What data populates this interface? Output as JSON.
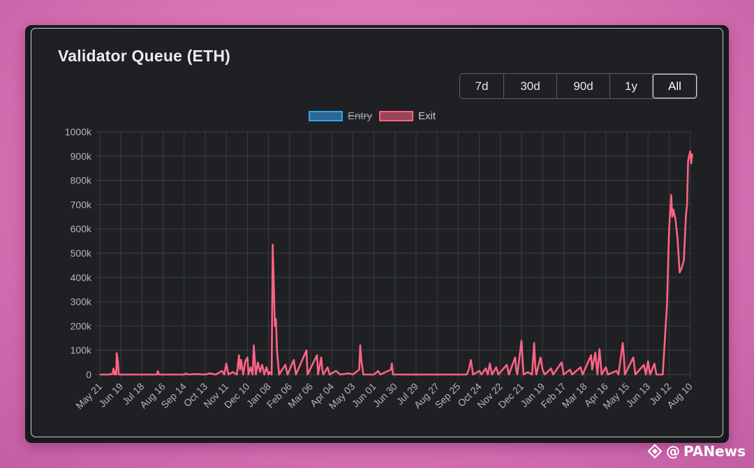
{
  "card": {
    "title": "Validator Queue (ETH)"
  },
  "range_buttons": [
    "7d",
    "30d",
    "90d",
    "1y",
    "All"
  ],
  "active_range": "All",
  "watermark": {
    "at": "@",
    "brand": "PANews"
  },
  "colors": {
    "entry": "#36a2eb",
    "exit": "#ff6384",
    "grid": "#3b3e43",
    "tick": "#b3b6ba"
  },
  "chart_data": {
    "type": "line",
    "title": "",
    "legend": [
      {
        "name": "Entry",
        "color": "#36a2eb",
        "hidden": true
      },
      {
        "name": "Exit",
        "color": "#ff6384",
        "hidden": false
      }
    ],
    "legend_position": "top",
    "grid": true,
    "ylim": [
      0,
      1000000
    ],
    "y_ticks": [
      "0",
      "100k",
      "200k",
      "300k",
      "400k",
      "500k",
      "600k",
      "700k",
      "800k",
      "900k",
      "1000k"
    ],
    "x_tick_labels": [
      "May 21",
      "Jun 19",
      "Jul 18",
      "Aug 16",
      "Sep 14",
      "Oct 13",
      "Nov 11",
      "Dec 10",
      "Jan 08",
      "Feb 06",
      "Mar 06",
      "Apr 04",
      "May 03",
      "Jun 01",
      "Jun 30",
      "Jul 29",
      "Aug 27",
      "Sep 25",
      "Oct 24",
      "Nov 22",
      "Dec 21",
      "Jan 19",
      "Feb 17",
      "Mar 18",
      "Apr 16",
      "May 15",
      "Jun 13",
      "Jul 12",
      "Aug 10"
    ],
    "x_domain": [
      0,
      28.3
    ],
    "series": [
      {
        "name": "Exit",
        "points": [
          [
            0,
            0
          ],
          [
            0.4,
            0
          ],
          [
            0.6,
            2000
          ],
          [
            0.65,
            25000
          ],
          [
            0.7,
            0
          ],
          [
            0.75,
            15000
          ],
          [
            0.78,
            0
          ],
          [
            0.8,
            88000
          ],
          [
            0.85,
            60000
          ],
          [
            0.9,
            0
          ],
          [
            1.2,
            0
          ],
          [
            2.0,
            0
          ],
          [
            2.7,
            0
          ],
          [
            2.75,
            14000
          ],
          [
            2.8,
            0
          ],
          [
            3.5,
            0
          ],
          [
            4.0,
            0
          ],
          [
            4.1,
            4000
          ],
          [
            4.2,
            0
          ],
          [
            4.5,
            2000
          ],
          [
            5.0,
            0
          ],
          [
            5.2,
            5000
          ],
          [
            5.5,
            0
          ],
          [
            5.8,
            15000
          ],
          [
            5.9,
            0
          ],
          [
            6.0,
            45000
          ],
          [
            6.1,
            0
          ],
          [
            6.3,
            10000
          ],
          [
            6.5,
            0
          ],
          [
            6.6,
            80000
          ],
          [
            6.65,
            20000
          ],
          [
            6.7,
            60000
          ],
          [
            6.8,
            0
          ],
          [
            6.9,
            55000
          ],
          [
            7.0,
            70000
          ],
          [
            7.05,
            0
          ],
          [
            7.15,
            30000
          ],
          [
            7.25,
            0
          ],
          [
            7.3,
            120000
          ],
          [
            7.35,
            60000
          ],
          [
            7.4,
            0
          ],
          [
            7.5,
            50000
          ],
          [
            7.6,
            10000
          ],
          [
            7.7,
            40000
          ],
          [
            7.8,
            0
          ],
          [
            7.9,
            30000
          ],
          [
            8.0,
            0
          ],
          [
            8.05,
            10000
          ],
          [
            8.15,
            0
          ],
          [
            8.2,
            535000
          ],
          [
            8.25,
            380000
          ],
          [
            8.3,
            200000
          ],
          [
            8.35,
            230000
          ],
          [
            8.4,
            100000
          ],
          [
            8.5,
            0
          ],
          [
            8.8,
            40000
          ],
          [
            8.9,
            0
          ],
          [
            9.2,
            60000
          ],
          [
            9.3,
            0
          ],
          [
            9.8,
            100000
          ],
          [
            9.85,
            0
          ],
          [
            10.3,
            80000
          ],
          [
            10.35,
            0
          ],
          [
            10.5,
            70000
          ],
          [
            10.55,
            20000
          ],
          [
            10.6,
            0
          ],
          [
            10.8,
            30000
          ],
          [
            10.9,
            0
          ],
          [
            11.2,
            15000
          ],
          [
            11.4,
            0
          ],
          [
            11.8,
            5000
          ],
          [
            12.0,
            0
          ],
          [
            12.3,
            20000
          ],
          [
            12.35,
            120000
          ],
          [
            12.4,
            60000
          ],
          [
            12.5,
            0
          ],
          [
            13.0,
            0
          ],
          [
            13.2,
            15000
          ],
          [
            13.3,
            0
          ],
          [
            13.8,
            20000
          ],
          [
            13.85,
            45000
          ],
          [
            13.9,
            0
          ],
          [
            14.5,
            0
          ],
          [
            14.8,
            0
          ],
          [
            15.6,
            0
          ],
          [
            16.0,
            0
          ],
          [
            17.4,
            0
          ],
          [
            17.5,
            20000
          ],
          [
            17.6,
            60000
          ],
          [
            17.7,
            0
          ],
          [
            18.0,
            15000
          ],
          [
            18.1,
            0
          ],
          [
            18.3,
            25000
          ],
          [
            18.4,
            0
          ],
          [
            18.5,
            45000
          ],
          [
            18.6,
            0
          ],
          [
            18.8,
            30000
          ],
          [
            18.9,
            0
          ],
          [
            19.3,
            40000
          ],
          [
            19.4,
            0
          ],
          [
            19.7,
            70000
          ],
          [
            19.75,
            20000
          ],
          [
            19.8,
            0
          ],
          [
            20.0,
            140000
          ],
          [
            20.05,
            60000
          ],
          [
            20.1,
            0
          ],
          [
            20.3,
            10000
          ],
          [
            20.5,
            0
          ],
          [
            20.6,
            130000
          ],
          [
            20.65,
            40000
          ],
          [
            20.7,
            0
          ],
          [
            20.9,
            70000
          ],
          [
            21.0,
            20000
          ],
          [
            21.1,
            0
          ],
          [
            21.4,
            25000
          ],
          [
            21.5,
            0
          ],
          [
            21.9,
            50000
          ],
          [
            22.0,
            0
          ],
          [
            22.3,
            20000
          ],
          [
            22.4,
            0
          ],
          [
            22.8,
            30000
          ],
          [
            22.9,
            0
          ],
          [
            23.3,
            80000
          ],
          [
            23.35,
            20000
          ],
          [
            23.5,
            90000
          ],
          [
            23.6,
            0
          ],
          [
            23.7,
            105000
          ],
          [
            23.8,
            0
          ],
          [
            24.0,
            30000
          ],
          [
            24.1,
            0
          ],
          [
            24.5,
            15000
          ],
          [
            24.6,
            0
          ],
          [
            24.8,
            130000
          ],
          [
            24.85,
            80000
          ],
          [
            24.9,
            0
          ],
          [
            25.3,
            70000
          ],
          [
            25.4,
            0
          ],
          [
            25.8,
            40000
          ],
          [
            25.9,
            0
          ],
          [
            26.0,
            55000
          ],
          [
            26.1,
            0
          ],
          [
            26.3,
            45000
          ],
          [
            26.4,
            0
          ],
          [
            26.7,
            0
          ],
          [
            26.9,
            290000
          ],
          [
            27.0,
            600000
          ],
          [
            27.1,
            740000
          ],
          [
            27.15,
            650000
          ],
          [
            27.2,
            680000
          ],
          [
            27.3,
            640000
          ],
          [
            27.4,
            560000
          ],
          [
            27.5,
            420000
          ],
          [
            27.6,
            440000
          ],
          [
            27.7,
            470000
          ],
          [
            27.8,
            660000
          ],
          [
            27.85,
            700000
          ],
          [
            27.9,
            880000
          ],
          [
            28.0,
            920000
          ],
          [
            28.05,
            870000
          ],
          [
            28.1,
            910000
          ]
        ]
      }
    ]
  }
}
